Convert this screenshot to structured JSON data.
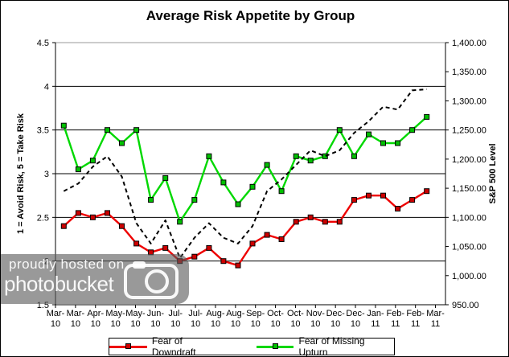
{
  "chart_data": {
    "type": "line",
    "title": "Average Risk Appetite by Group",
    "grid": true,
    "legend": {
      "position": "bottom",
      "entries": [
        "Fear of Downdraft",
        "Fear of Missing Upturn"
      ]
    },
    "left_axis": {
      "label": "1 = Avoid Risk, 5 = Take Risk",
      "min": 1.5,
      "max": 4.5,
      "step": 0.5,
      "tick_labels": [
        "4.5",
        "4",
        "3.5",
        "3",
        "2.5",
        "2",
        "1.5"
      ]
    },
    "right_axis": {
      "label": "S&P 500 Level",
      "min": 950,
      "max": 1400,
      "step": 50,
      "tick_labels": [
        "1,400.00",
        "1,350.00",
        "1,300.00",
        "1,250.00",
        "1,200.00",
        "1,150.00",
        "1,100.00",
        "1,050.00",
        "1,000.00",
        "950.00"
      ]
    },
    "x_tick_labels": [
      "Mar-10",
      "Mar-10",
      "Apr-10",
      "May-10",
      "May-10",
      "Jun-10",
      "Jul-10",
      "Jul-10",
      "Aug-10",
      "Aug-10",
      "Sep-10",
      "Oct-10",
      "Oct-10",
      "Nov-10",
      "Dec-10",
      "Dec-10",
      "Jan-11",
      "Feb-11",
      "Feb-11",
      "Mar-11"
    ],
    "series": [
      {
        "name": "Fear of Downdraft",
        "axis": "left",
        "style": "solid",
        "marker": "square",
        "line_color": "#ee0000",
        "marker_color": "#cc0000",
        "in_legend": true,
        "values": [
          2.4,
          2.55,
          2.5,
          2.55,
          2.4,
          2.2,
          2.1,
          2.15,
          2.0,
          2.05,
          2.15,
          2.0,
          1.95,
          2.2,
          2.3,
          2.25,
          2.45,
          2.5,
          2.45,
          2.45,
          2.7,
          2.75,
          2.75,
          2.6,
          2.7,
          2.8
        ]
      },
      {
        "name": "Fear of Missing Upturn",
        "axis": "left",
        "style": "solid",
        "marker": "square",
        "line_color": "#00d800",
        "marker_color": "#00c000",
        "in_legend": true,
        "values": [
          3.55,
          3.05,
          3.15,
          3.5,
          3.35,
          3.5,
          2.7,
          2.95,
          2.45,
          2.7,
          3.2,
          2.9,
          2.65,
          2.85,
          3.1,
          2.8,
          3.2,
          3.15,
          3.2,
          3.5,
          3.2,
          3.45,
          3.35,
          3.35,
          3.5,
          3.65
        ]
      },
      {
        "name": "S&P 500 (unlabeled dashed line)",
        "axis": "right",
        "style": "dashed",
        "marker": "none",
        "line_color": "#000000",
        "in_legend": false,
        "values": [
          1145,
          1158,
          1187,
          1205,
          1170,
          1090,
          1055,
          1095,
          1030,
          1065,
          1090,
          1065,
          1055,
          1085,
          1145,
          1165,
          1190,
          1215,
          1205,
          1215,
          1245,
          1265,
          1290,
          1285,
          1318,
          1320
        ]
      }
    ]
  },
  "watermark": {
    "line1": "proudly hosted on",
    "line2": "photobucket"
  }
}
